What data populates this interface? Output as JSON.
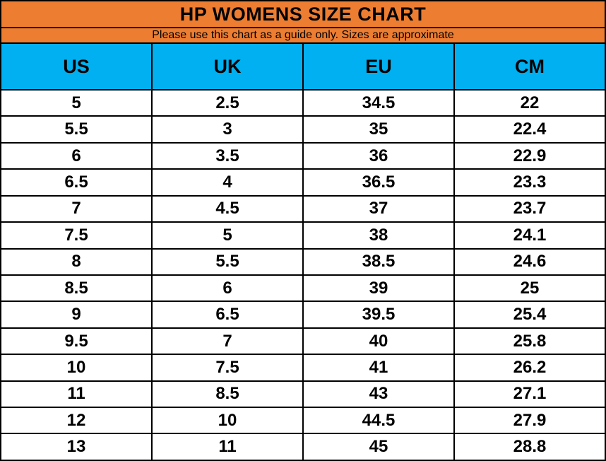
{
  "title": "HP WOMENS SIZE CHART",
  "subtitle": "Please use this chart as a guide only. Sizes are approximate",
  "colors": {
    "header_orange": "#ED7D31",
    "header_blue": "#00B0F0",
    "border_color": "#000000",
    "text_color": "#000000",
    "row_bg": "#FFFFFF"
  },
  "chart_data": {
    "type": "table",
    "title": "HP WOMENS SIZE CHART",
    "subtitle": "Please use this chart as a guide only. Sizes are approximate",
    "columns": [
      "US",
      "UK",
      "EU",
      "CM"
    ],
    "rows": [
      [
        "5",
        "2.5",
        "34.5",
        "22"
      ],
      [
        "5.5",
        "3",
        "35",
        "22.4"
      ],
      [
        "6",
        "3.5",
        "36",
        "22.9"
      ],
      [
        "6.5",
        "4",
        "36.5",
        "23.3"
      ],
      [
        "7",
        "4.5",
        "37",
        "23.7"
      ],
      [
        "7.5",
        "5",
        "38",
        "24.1"
      ],
      [
        "8",
        "5.5",
        "38.5",
        "24.6"
      ],
      [
        "8.5",
        "6",
        "39",
        "25"
      ],
      [
        "9",
        "6.5",
        "39.5",
        "25.4"
      ],
      [
        "9.5",
        "7",
        "40",
        "25.8"
      ],
      [
        "10",
        "7.5",
        "41",
        "26.2"
      ],
      [
        "11",
        "8.5",
        "43",
        "27.1"
      ],
      [
        "12",
        "10",
        "44.5",
        "27.9"
      ],
      [
        "13",
        "11",
        "45",
        "28.8"
      ]
    ]
  }
}
